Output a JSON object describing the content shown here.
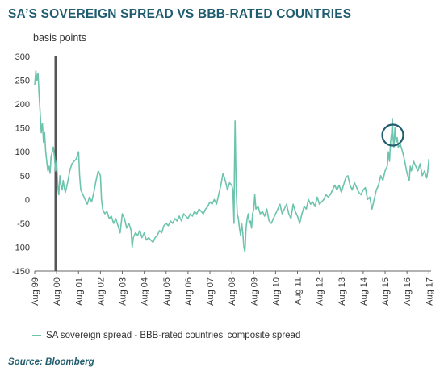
{
  "header": {
    "title": "SA’S SOVEREIGN SPREAD VS BBB-RATED COUNTRIES",
    "units": "basis points"
  },
  "legend": {
    "label": "SA sovereign spread - BBB-rated countries’ composite spread"
  },
  "source": "Source: Bloomberg",
  "colors": {
    "series": "#6cc4ad",
    "title": "#1f5c6e",
    "marker": "#555555",
    "highlight": "#1f5c6e"
  },
  "chart_data": {
    "type": "line",
    "title": "SA’S SOVEREIGN SPREAD VS BBB-RATED COUNTRIES",
    "ylabel": "basis points",
    "ylim": [
      -150,
      300
    ],
    "yticks": [
      300,
      250,
      200,
      150,
      100,
      50,
      0,
      -50,
      -100,
      -150
    ],
    "x_ticks": [
      {
        "t": 1999.6,
        "label": "Aug 99"
      },
      {
        "t": 2000.6,
        "label": "Aug 00"
      },
      {
        "t": 2001.6,
        "label": "Aug 01"
      },
      {
        "t": 2002.6,
        "label": "Aug 02"
      },
      {
        "t": 2003.6,
        "label": "Aug 03"
      },
      {
        "t": 2004.6,
        "label": "Aug 04"
      },
      {
        "t": 2005.6,
        "label": "Aug 05"
      },
      {
        "t": 2006.6,
        "label": "Aug 06"
      },
      {
        "t": 2007.6,
        "label": "Aug 07"
      },
      {
        "t": 2008.6,
        "label": "Aug 08"
      },
      {
        "t": 2009.6,
        "label": "Aug 09"
      },
      {
        "t": 2010.6,
        "label": "Aug 10"
      },
      {
        "t": 2011.6,
        "label": "Aug 11"
      },
      {
        "t": 2012.6,
        "label": "Aug 12"
      },
      {
        "t": 2013.6,
        "label": "Aug 13"
      },
      {
        "t": 2014.6,
        "label": "Aug 14"
      },
      {
        "t": 2015.6,
        "label": "Aug 15"
      },
      {
        "t": 2016.6,
        "label": "Aug 16"
      },
      {
        "t": 2017.6,
        "label": "Aug 17"
      }
    ],
    "xlim": [
      1999.6,
      2017.7
    ],
    "grid": false,
    "vertical_marker": {
      "t": 2000.55,
      "label": ""
    },
    "highlight_circle": {
      "t": 2015.95,
      "y": 135
    },
    "series": [
      {
        "name": "SA sovereign spread - BBB-rated countries’ composite spread",
        "points": [
          [
            1999.6,
            240
          ],
          [
            1999.65,
            270
          ],
          [
            1999.7,
            250
          ],
          [
            1999.75,
            265
          ],
          [
            1999.8,
            220
          ],
          [
            1999.85,
            180
          ],
          [
            1999.9,
            140
          ],
          [
            1999.95,
            160
          ],
          [
            2000.0,
            120
          ],
          [
            2000.05,
            140
          ],
          [
            2000.1,
            100
          ],
          [
            2000.15,
            80
          ],
          [
            2000.2,
            60
          ],
          [
            2000.25,
            70
          ],
          [
            2000.3,
            55
          ],
          [
            2000.35,
            90
          ],
          [
            2000.4,
            100
          ],
          [
            2000.45,
            110
          ],
          [
            2000.5,
            90
          ],
          [
            2000.55,
            60
          ],
          [
            2000.6,
            80
          ],
          [
            2000.65,
            30
          ],
          [
            2000.7,
            10
          ],
          [
            2000.75,
            50
          ],
          [
            2000.8,
            30
          ],
          [
            2000.85,
            20
          ],
          [
            2000.9,
            40
          ],
          [
            2000.95,
            25
          ],
          [
            2001.0,
            15
          ],
          [
            2001.1,
            35
          ],
          [
            2001.2,
            60
          ],
          [
            2001.3,
            75
          ],
          [
            2001.4,
            80
          ],
          [
            2001.5,
            85
          ],
          [
            2001.6,
            100
          ],
          [
            2001.65,
            50
          ],
          [
            2001.7,
            20
          ],
          [
            2001.8,
            10
          ],
          [
            2001.9,
            0
          ],
          [
            2002.0,
            -10
          ],
          [
            2002.1,
            5
          ],
          [
            2002.2,
            -5
          ],
          [
            2002.3,
            15
          ],
          [
            2002.4,
            40
          ],
          [
            2002.5,
            60
          ],
          [
            2002.6,
            50
          ],
          [
            2002.65,
            0
          ],
          [
            2002.7,
            -20
          ],
          [
            2002.8,
            -30
          ],
          [
            2002.9,
            -25
          ],
          [
            2003.0,
            -40
          ],
          [
            2003.1,
            -35
          ],
          [
            2003.2,
            -50
          ],
          [
            2003.3,
            -40
          ],
          [
            2003.4,
            -55
          ],
          [
            2003.5,
            -70
          ],
          [
            2003.6,
            -30
          ],
          [
            2003.7,
            -40
          ],
          [
            2003.8,
            -60
          ],
          [
            2003.9,
            -50
          ],
          [
            2004.0,
            -65
          ],
          [
            2004.05,
            -100
          ],
          [
            2004.1,
            -80
          ],
          [
            2004.2,
            -70
          ],
          [
            2004.3,
            -75
          ],
          [
            2004.4,
            -65
          ],
          [
            2004.5,
            -80
          ],
          [
            2004.6,
            -70
          ],
          [
            2004.7,
            -85
          ],
          [
            2004.8,
            -80
          ],
          [
            2004.9,
            -85
          ],
          [
            2005.0,
            -90
          ],
          [
            2005.1,
            -80
          ],
          [
            2005.2,
            -75
          ],
          [
            2005.3,
            -65
          ],
          [
            2005.4,
            -70
          ],
          [
            2005.5,
            -55
          ],
          [
            2005.6,
            -50
          ],
          [
            2005.7,
            -55
          ],
          [
            2005.8,
            -45
          ],
          [
            2005.9,
            -50
          ],
          [
            2006.0,
            -40
          ],
          [
            2006.1,
            -45
          ],
          [
            2006.2,
            -35
          ],
          [
            2006.3,
            -45
          ],
          [
            2006.4,
            -30
          ],
          [
            2006.5,
            -35
          ],
          [
            2006.6,
            -40
          ],
          [
            2006.7,
            -30
          ],
          [
            2006.8,
            -35
          ],
          [
            2006.9,
            -25
          ],
          [
            2007.0,
            -30
          ],
          [
            2007.1,
            -20
          ],
          [
            2007.2,
            -25
          ],
          [
            2007.3,
            -30
          ],
          [
            2007.4,
            -20
          ],
          [
            2007.5,
            -15
          ],
          [
            2007.6,
            -5
          ],
          [
            2007.7,
            -10
          ],
          [
            2007.8,
            0
          ],
          [
            2007.9,
            -10
          ],
          [
            2008.0,
            10
          ],
          [
            2008.1,
            30
          ],
          [
            2008.2,
            55
          ],
          [
            2008.3,
            40
          ],
          [
            2008.4,
            20
          ],
          [
            2008.5,
            35
          ],
          [
            2008.6,
            30
          ],
          [
            2008.65,
            20
          ],
          [
            2008.7,
            -50
          ],
          [
            2008.72,
            60
          ],
          [
            2008.75,
            165
          ],
          [
            2008.78,
            80
          ],
          [
            2008.8,
            20
          ],
          [
            2008.85,
            -30
          ],
          [
            2008.9,
            -40
          ],
          [
            2008.95,
            -60
          ],
          [
            2009.0,
            -75
          ],
          [
            2009.05,
            -50
          ],
          [
            2009.1,
            -70
          ],
          [
            2009.15,
            -100
          ],
          [
            2009.2,
            -110
          ],
          [
            2009.25,
            -60
          ],
          [
            2009.3,
            -40
          ],
          [
            2009.35,
            -30
          ],
          [
            2009.4,
            -50
          ],
          [
            2009.45,
            -45
          ],
          [
            2009.5,
            -60
          ],
          [
            2009.55,
            -30
          ],
          [
            2009.6,
            -20
          ],
          [
            2009.65,
            10
          ],
          [
            2009.7,
            -20
          ],
          [
            2009.8,
            -15
          ],
          [
            2009.9,
            -30
          ],
          [
            2010.0,
            -25
          ],
          [
            2010.1,
            -35
          ],
          [
            2010.2,
            -20
          ],
          [
            2010.3,
            -45
          ],
          [
            2010.4,
            -50
          ],
          [
            2010.5,
            -40
          ],
          [
            2010.6,
            -30
          ],
          [
            2010.7,
            -20
          ],
          [
            2010.8,
            -10
          ],
          [
            2010.9,
            -30
          ],
          [
            2011.0,
            -20
          ],
          [
            2011.1,
            -10
          ],
          [
            2011.2,
            -30
          ],
          [
            2011.3,
            -40
          ],
          [
            2011.4,
            -10
          ],
          [
            2011.5,
            -25
          ],
          [
            2011.6,
            -35
          ],
          [
            2011.7,
            -50
          ],
          [
            2011.8,
            -30
          ],
          [
            2011.9,
            -15
          ],
          [
            2012.0,
            -20
          ],
          [
            2012.1,
            0
          ],
          [
            2012.2,
            -10
          ],
          [
            2012.3,
            -5
          ],
          [
            2012.4,
            -15
          ],
          [
            2012.5,
            5
          ],
          [
            2012.6,
            -10
          ],
          [
            2012.7,
            -5
          ],
          [
            2012.8,
            0
          ],
          [
            2012.9,
            10
          ],
          [
            2013.0,
            5
          ],
          [
            2013.1,
            10
          ],
          [
            2013.2,
            20
          ],
          [
            2013.3,
            30
          ],
          [
            2013.4,
            20
          ],
          [
            2013.5,
            30
          ],
          [
            2013.6,
            15
          ],
          [
            2013.7,
            30
          ],
          [
            2013.8,
            45
          ],
          [
            2013.9,
            50
          ],
          [
            2014.0,
            30
          ],
          [
            2014.1,
            20
          ],
          [
            2014.2,
            35
          ],
          [
            2014.3,
            25
          ],
          [
            2014.4,
            15
          ],
          [
            2014.5,
            10
          ],
          [
            2014.6,
            20
          ],
          [
            2014.7,
            25
          ],
          [
            2014.8,
            0
          ],
          [
            2014.9,
            5
          ],
          [
            2015.0,
            -20
          ],
          [
            2015.1,
            0
          ],
          [
            2015.2,
            20
          ],
          [
            2015.3,
            30
          ],
          [
            2015.4,
            50
          ],
          [
            2015.5,
            40
          ],
          [
            2015.6,
            60
          ],
          [
            2015.7,
            70
          ],
          [
            2015.75,
            100
          ],
          [
            2015.8,
            80
          ],
          [
            2015.85,
            120
          ],
          [
            2015.9,
            140
          ],
          [
            2015.93,
            170
          ],
          [
            2015.96,
            130
          ],
          [
            2016.0,
            110
          ],
          [
            2016.05,
            150
          ],
          [
            2016.1,
            120
          ],
          [
            2016.15,
            130
          ],
          [
            2016.2,
            110
          ],
          [
            2016.3,
            115
          ],
          [
            2016.4,
            100
          ],
          [
            2016.5,
            80
          ],
          [
            2016.6,
            55
          ],
          [
            2016.7,
            40
          ],
          [
            2016.75,
            70
          ],
          [
            2016.8,
            60
          ],
          [
            2016.9,
            80
          ],
          [
            2017.0,
            70
          ],
          [
            2017.1,
            60
          ],
          [
            2017.2,
            75
          ],
          [
            2017.3,
            50
          ],
          [
            2017.4,
            60
          ],
          [
            2017.5,
            45
          ],
          [
            2017.55,
            60
          ],
          [
            2017.6,
            85
          ]
        ]
      }
    ]
  }
}
